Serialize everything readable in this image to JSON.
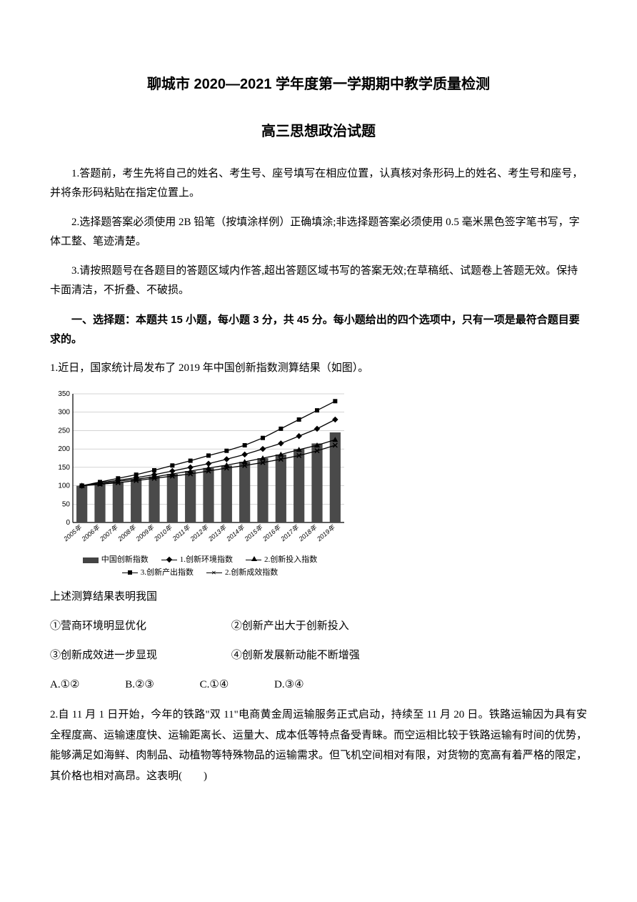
{
  "header": {
    "title_main": "聊城市 2020—2021 学年度第一学期期中教学质量检测",
    "title_sub": "高三思想政治试题"
  },
  "instructions": {
    "i1": "1.答题前，考生先将自己的姓名、考生号、座号填写在相应位置，认真核对条形码上的姓名、考生号和座号，并将条形码粘贴在指定位置上。",
    "i2": "2.选择题答案必须使用 2B 铅笔（按填涂样例）正确填涂;非选择题答案必须使用 0.5 毫米黑色签字笔书写，字体工整、笔迹清楚。",
    "i3": "3.请按照题号在各题目的答题区域内作答,超出答题区域书写的答案无效;在草稿纸、试题卷上答题无效。保持卡面清洁，不折叠、不破损。"
  },
  "section1": {
    "header": "一、选择题：本题共 15 小题，每小题 3 分，共 45 分。每小题给出的四个选项中，只有一项是最符合题目要求的。"
  },
  "q1": {
    "stem": "1.近日，国家统计局发布了 2019 年中国创新指数测算结果（如图）。",
    "result_intro": "上述测算结果表明我国",
    "opt1": "①营商环境明显优化",
    "opt2": "②创新产出大于创新投入",
    "opt3": "③创新成效进一步显现",
    "opt4": "④创新发展新动能不断增强",
    "ansA": "A.①②",
    "ansB": "B.②③",
    "ansC": "C.①④",
    "ansD": "D.③④"
  },
  "chart": {
    "type": "combo-bar-line",
    "categories": [
      "2005年",
      "2006年",
      "2007年",
      "2008年",
      "2009年",
      "2010年",
      "2011年",
      "2012年",
      "2013年",
      "2014年",
      "2015年",
      "2016年",
      "2017年",
      "2018年",
      "2019年"
    ],
    "ylim": [
      0,
      350
    ],
    "ytick_step": 50,
    "bar_series": {
      "name": "中国创新指数",
      "values": [
        100,
        105,
        110,
        118,
        125,
        132,
        140,
        148,
        155,
        165,
        175,
        185,
        200,
        215,
        245
      ],
      "color": "#4a4a4a"
    },
    "line_series": [
      {
        "name": "1.创新环境指数",
        "marker": "diamond",
        "values": [
          100,
          108,
          115,
          122,
          130,
          140,
          150,
          160,
          172,
          185,
          200,
          215,
          235,
          255,
          280
        ]
      },
      {
        "name": "2.创新投入指数",
        "marker": "triangle",
        "values": [
          100,
          105,
          112,
          118,
          124,
          132,
          140,
          148,
          156,
          165,
          175,
          185,
          198,
          210,
          225
        ]
      },
      {
        "name": "3.创新产出指数",
        "marker": "square",
        "values": [
          100,
          110,
          120,
          130,
          142,
          155,
          168,
          182,
          195,
          210,
          230,
          255,
          280,
          305,
          330
        ]
      },
      {
        "name": "2.创新成效指数",
        "marker": "cross",
        "values": [
          100,
          104,
          108,
          114,
          120,
          126,
          132,
          140,
          148,
          155,
          163,
          172,
          182,
          195,
          210
        ]
      }
    ],
    "bar_width": 0.6,
    "axis_color": "#000",
    "grid_color": "#aaa",
    "label_fontsize": 10,
    "background_color": "#ffffff",
    "legend": {
      "row1": [
        "中国创新指数",
        "1.创新环境指数",
        "2.创新投入指数"
      ],
      "row2": [
        "3.创新产出指数",
        "2.创新成效指数"
      ]
    }
  },
  "q2": {
    "text": "2.自 11 月 1 日开始，今年的铁路\"双 11\"电商黄金周运输服务正式启动，持续至 11 月 20 日。铁路运输因为具有安全程度高、运输速度快、运输距离长、运量大、成本低等特点备受青睐。而空运相比较于铁路运输有时间的优势，能够满足如海鲜、肉制品、动植物等特殊物品的运输需求。但飞机空间相对有限，对货物的宽高有着严格的限定，其价格也相对高昂。这表明(　　)"
  }
}
